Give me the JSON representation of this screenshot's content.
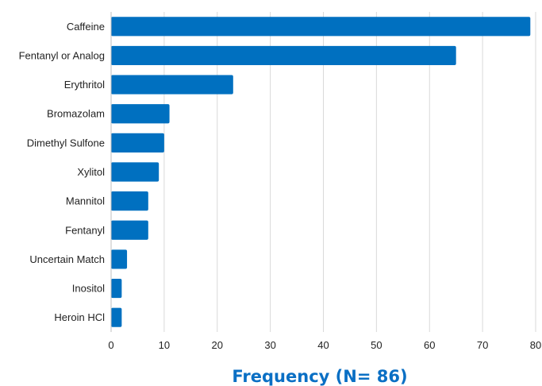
{
  "chart_data": {
    "type": "bar",
    "orientation": "horizontal",
    "categories": [
      "Caffeine",
      "Fentanyl or Analog",
      "Erythritol",
      "Bromazolam",
      "Dimethyl Sulfone",
      "Xylitol",
      "Mannitol",
      "Fentanyl",
      "Uncertain Match",
      "Inositol",
      "Heroin HCl"
    ],
    "values": [
      79,
      65,
      23,
      11,
      10,
      9,
      7,
      7,
      3,
      2,
      2
    ],
    "xlabel": "Frequency (N= 86)",
    "ylabel": "",
    "xlim": [
      0,
      80
    ],
    "xticks": [
      "0",
      "10",
      "20",
      "30",
      "40",
      "50",
      "60",
      "70",
      "80"
    ],
    "grid": "vertical",
    "bar_color": "#0070c0",
    "title_color": "#0a6fc4",
    "legend": "none"
  }
}
